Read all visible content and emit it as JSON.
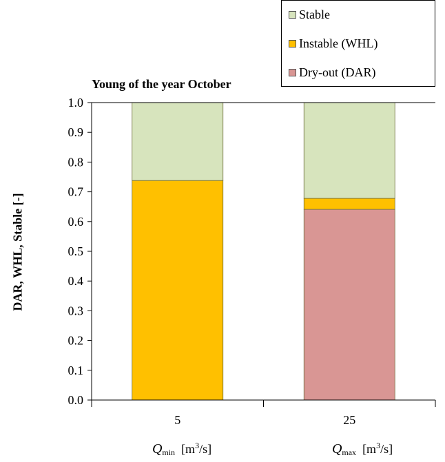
{
  "chart_data": {
    "type": "bar",
    "stacked": true,
    "title": "Young of the year October",
    "ylabel": "DAR, WHL, Stable [-]",
    "ylim": [
      0,
      1.0
    ],
    "yticks": [
      "0.0",
      "0.1",
      "0.2",
      "0.3",
      "0.4",
      "0.5",
      "0.6",
      "0.7",
      "0.8",
      "0.9",
      "1.0"
    ],
    "categories": [
      "5",
      "25"
    ],
    "category_axis_labels": [
      {
        "symbol": "Q",
        "sub": "min",
        "unit_pre": "[m",
        "unit_sup": "3",
        "unit_post": "/s]"
      },
      {
        "symbol": "Q",
        "sub": "max",
        "unit_pre": "[m",
        "unit_sup": "3",
        "unit_post": "/s]"
      }
    ],
    "series": [
      {
        "name": "Dry-out (DAR)",
        "color": "#d99694",
        "values": [
          0.0,
          0.641
        ]
      },
      {
        "name": "Instable (WHL)",
        "color": "#ffc000",
        "values": [
          0.738,
          0.037
        ]
      },
      {
        "name": "Stable",
        "color": "#d7e4bd",
        "values": [
          0.262,
          0.322
        ]
      }
    ],
    "legend_order": [
      "Stable",
      "Instable (WHL)",
      "Dry-out (DAR)"
    ],
    "legend_position": "top-right",
    "grid": false
  }
}
